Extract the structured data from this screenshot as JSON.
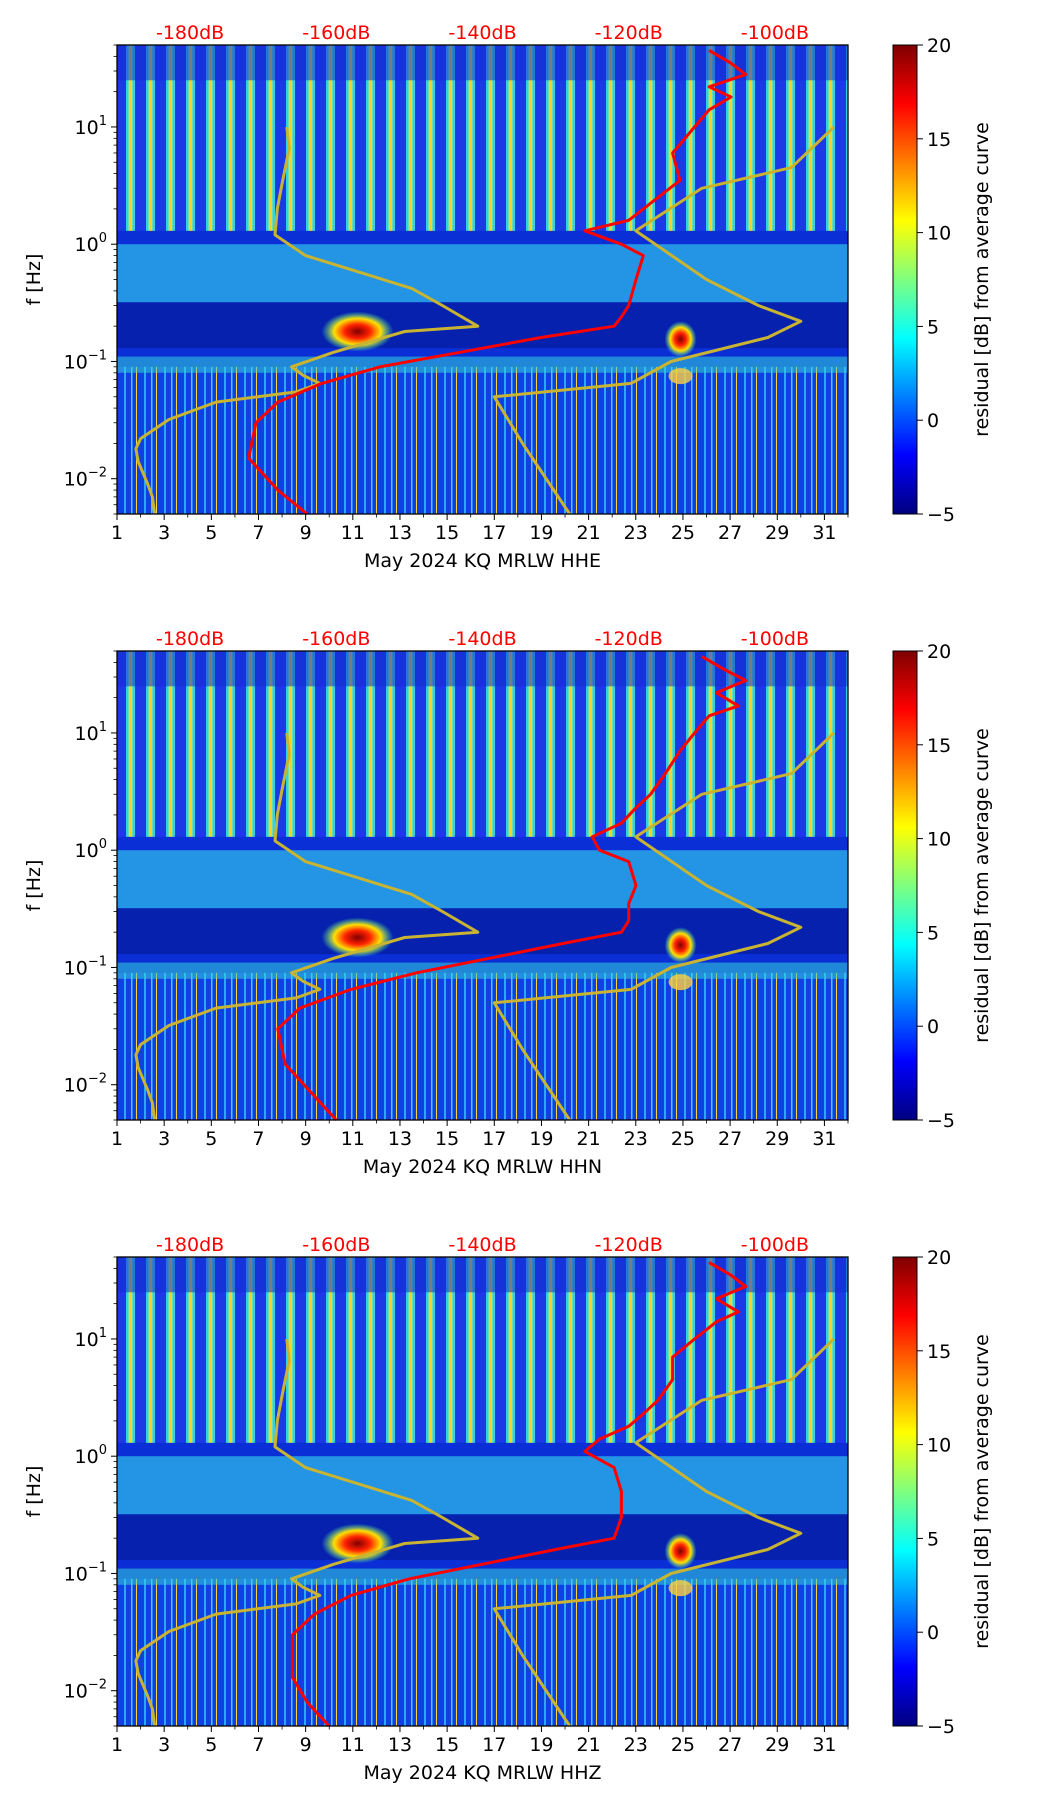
{
  "figure": {
    "colorbar_ticks": [
      "20",
      "15",
      "10",
      "5",
      "0",
      "−5"
    ],
    "colorbar_values": [
      20,
      15,
      10,
      5,
      0,
      -5
    ],
    "colorbar_label": "residual [dB] from average curve",
    "colorbar_range": [
      -5,
      20
    ],
    "colorbar_colors": [
      "#00007f",
      "#0000ff",
      "#007fff",
      "#00ffff",
      "#7fff7f",
      "#ffff00",
      "#ff7f00",
      "#ff0000",
      "#7f0000"
    ],
    "ylabel": "f [Hz]",
    "y_tick_labels": [
      {
        "base": "10",
        "exp": "1",
        "value": 10
      },
      {
        "base": "10",
        "exp": "0",
        "value": 1
      },
      {
        "base": "10",
        "exp": "−1",
        "value": 0.1
      },
      {
        "base": "10",
        "exp": "−2",
        "value": 0.01
      }
    ],
    "x_ticks": [
      "1",
      "3",
      "5",
      "7",
      "9",
      "11",
      "13",
      "15",
      "17",
      "19",
      "21",
      "23",
      "25",
      "27",
      "29",
      "31"
    ],
    "x_tick_values": [
      1,
      3,
      5,
      7,
      9,
      11,
      13,
      15,
      17,
      19,
      21,
      23,
      25,
      27,
      29,
      31
    ],
    "db_axis_labels": [
      "-180dB",
      "-160dB",
      "-140dB",
      "-120dB",
      "-100dB"
    ],
    "db_axis_values": [
      -180,
      -160,
      -140,
      -120,
      -100
    ],
    "colors": {
      "nlnm_nhnm_line": "#c8b432",
      "average_psd_line": "#ff0000",
      "db_labels": "#ff0000"
    }
  },
  "chart_data": [
    {
      "type": "heatmap",
      "xlabel": "May 2024 KQ MRLW  HHE",
      "ylabel": "f [Hz]",
      "xlim": [
        1,
        32
      ],
      "ylim": [
        0.005,
        50
      ],
      "yscale": "log",
      "secondary_x_axis": {
        "labels": [
          "-180dB",
          "-160dB",
          "-140dB",
          "-120dB",
          "-100dB"
        ],
        "values": [
          -180,
          -160,
          -140,
          -120,
          -100
        ],
        "position": "top"
      },
      "colorbar": {
        "label": "residual [dB] from average curve",
        "range": [
          -5,
          20
        ],
        "ticks": [
          -5,
          0,
          5,
          10,
          15,
          20
        ]
      },
      "lines": [
        {
          "color": "yellow",
          "points": [
            [
              2.6,
              0.005
            ],
            [
              2.5,
              0.007
            ],
            [
              2.3,
              0.009
            ],
            [
              1.9,
              0.014
            ],
            [
              1.8,
              0.018
            ],
            [
              2.0,
              0.022
            ],
            [
              3.2,
              0.032
            ],
            [
              5.2,
              0.045
            ],
            [
              8.6,
              0.055
            ],
            [
              9.6,
              0.065
            ],
            [
              8.9,
              0.076
            ],
            [
              8.4,
              0.09
            ],
            [
              10.2,
              0.12
            ],
            [
              13.2,
              0.18
            ],
            [
              16.3,
              0.2
            ],
            [
              14.8,
              0.3
            ],
            [
              13.5,
              0.42
            ],
            [
              9.0,
              0.8
            ],
            [
              7.7,
              1.2
            ],
            [
              7.8,
              2.0
            ],
            [
              8.0,
              3.3
            ],
            [
              8.3,
              6.5
            ],
            [
              8.2,
              10
            ]
          ]
        },
        {
          "color": "yellow",
          "points": [
            [
              20.2,
              0.005
            ],
            [
              18.2,
              0.02
            ],
            [
              17.0,
              0.05
            ],
            [
              22.8,
              0.065
            ],
            [
              24.5,
              0.1
            ],
            [
              28.6,
              0.16
            ],
            [
              30.0,
              0.22
            ],
            [
              28.2,
              0.3
            ],
            [
              26.0,
              0.5
            ],
            [
              23.0,
              1.3
            ],
            [
              25.8,
              3.0
            ],
            [
              29.6,
              4.5
            ],
            [
              31.4,
              10
            ]
          ]
        },
        {
          "color": "red",
          "db_points": [
            [
              -164,
              0.005
            ],
            [
              -168,
              0.008
            ],
            [
              -172,
              0.015
            ],
            [
              -171,
              0.03
            ],
            [
              -168,
              0.045
            ],
            [
              -162,
              0.065
            ],
            [
              -154,
              0.09
            ],
            [
              -143,
              0.12
            ],
            [
              -132,
              0.16
            ],
            [
              -122,
              0.2
            ],
            [
              -121,
              0.24
            ],
            [
              -120,
              0.3
            ],
            [
              -119,
              0.5
            ],
            [
              -118,
              0.8
            ],
            [
              -121,
              1.0
            ],
            [
              -126,
              1.3
            ],
            [
              -120,
              1.6
            ],
            [
              -118,
              2.0
            ],
            [
              -116,
              2.5
            ],
            [
              -113,
              3.5
            ],
            [
              -114,
              6
            ],
            [
              -111,
              10
            ],
            [
              -109,
              14
            ],
            [
              -106,
              18
            ],
            [
              -109,
              22
            ],
            [
              -104,
              28
            ],
            [
              -106,
              35
            ],
            [
              -109,
              45
            ]
          ]
        }
      ]
    },
    {
      "type": "heatmap",
      "xlabel": "May 2024 KQ MRLW  HHN",
      "ylabel": "f [Hz]",
      "xlim": [
        1,
        32
      ],
      "ylim": [
        0.005,
        50
      ],
      "yscale": "log",
      "secondary_x_axis": {
        "labels": [
          "-180dB",
          "-160dB",
          "-140dB",
          "-120dB",
          "-100dB"
        ],
        "values": [
          -180,
          -160,
          -140,
          -120,
          -100
        ],
        "position": "top"
      },
      "colorbar": {
        "label": "residual [dB] from average curve",
        "range": [
          -5,
          20
        ],
        "ticks": [
          -5,
          0,
          5,
          10,
          15,
          20
        ]
      },
      "lines": [
        {
          "color": "yellow",
          "points": [
            [
              2.6,
              0.005
            ],
            [
              2.5,
              0.007
            ],
            [
              2.3,
              0.009
            ],
            [
              1.9,
              0.014
            ],
            [
              1.8,
              0.018
            ],
            [
              2.0,
              0.022
            ],
            [
              3.2,
              0.032
            ],
            [
              5.2,
              0.045
            ],
            [
              8.6,
              0.055
            ],
            [
              9.6,
              0.065
            ],
            [
              8.9,
              0.076
            ],
            [
              8.4,
              0.09
            ],
            [
              10.2,
              0.12
            ],
            [
              13.2,
              0.18
            ],
            [
              16.3,
              0.2
            ],
            [
              14.8,
              0.3
            ],
            [
              13.5,
              0.42
            ],
            [
              9.0,
              0.8
            ],
            [
              7.7,
              1.2
            ],
            [
              7.8,
              2.0
            ],
            [
              8.0,
              3.3
            ],
            [
              8.3,
              6.5
            ],
            [
              8.2,
              10
            ]
          ]
        },
        {
          "color": "yellow",
          "points": [
            [
              20.2,
              0.005
            ],
            [
              18.2,
              0.02
            ],
            [
              17.0,
              0.05
            ],
            [
              22.8,
              0.065
            ],
            [
              24.5,
              0.1
            ],
            [
              28.6,
              0.16
            ],
            [
              30.0,
              0.22
            ],
            [
              28.2,
              0.3
            ],
            [
              26.0,
              0.5
            ],
            [
              23.0,
              1.3
            ],
            [
              25.8,
              3.0
            ],
            [
              29.6,
              4.5
            ],
            [
              31.4,
              10
            ]
          ]
        },
        {
          "color": "red",
          "db_points": [
            [
              -160,
              0.005
            ],
            [
              -163,
              0.008
            ],
            [
              -167,
              0.015
            ],
            [
              -168,
              0.03
            ],
            [
              -165,
              0.045
            ],
            [
              -158,
              0.065
            ],
            [
              -149,
              0.09
            ],
            [
              -139,
              0.12
            ],
            [
              -129,
              0.16
            ],
            [
              -121,
              0.2
            ],
            [
              -120,
              0.25
            ],
            [
              -120,
              0.35
            ],
            [
              -119,
              0.5
            ],
            [
              -120,
              0.8
            ],
            [
              -124,
              1.0
            ],
            [
              -125,
              1.3
            ],
            [
              -121,
              1.7
            ],
            [
              -119,
              2.3
            ],
            [
              -117,
              3.0
            ],
            [
              -115,
              4.5
            ],
            [
              -113,
              7
            ],
            [
              -111,
              10
            ],
            [
              -109,
              14
            ],
            [
              -105,
              17
            ],
            [
              -108,
              22
            ],
            [
              -104,
              28
            ],
            [
              -107,
              35
            ],
            [
              -110,
              45
            ]
          ]
        }
      ]
    },
    {
      "type": "heatmap",
      "xlabel": "May 2024 KQ MRLW  HHZ",
      "ylabel": "f [Hz]",
      "xlim": [
        1,
        32
      ],
      "ylim": [
        0.005,
        50
      ],
      "yscale": "log",
      "secondary_x_axis": {
        "labels": [
          "-180dB",
          "-160dB",
          "-140dB",
          "-120dB",
          "-100dB"
        ],
        "values": [
          -180,
          -160,
          -140,
          -120,
          -100
        ],
        "position": "top"
      },
      "colorbar": {
        "label": "residual [dB] from average curve",
        "range": [
          -5,
          20
        ],
        "ticks": [
          -5,
          0,
          5,
          10,
          15,
          20
        ]
      },
      "lines": [
        {
          "color": "yellow",
          "points": [
            [
              2.6,
              0.005
            ],
            [
              2.5,
              0.007
            ],
            [
              2.3,
              0.009
            ],
            [
              1.9,
              0.014
            ],
            [
              1.8,
              0.018
            ],
            [
              2.0,
              0.022
            ],
            [
              3.2,
              0.032
            ],
            [
              5.2,
              0.045
            ],
            [
              8.6,
              0.055
            ],
            [
              9.6,
              0.065
            ],
            [
              8.9,
              0.076
            ],
            [
              8.4,
              0.09
            ],
            [
              10.2,
              0.12
            ],
            [
              13.2,
              0.18
            ],
            [
              16.3,
              0.2
            ],
            [
              14.8,
              0.3
            ],
            [
              13.5,
              0.42
            ],
            [
              9.0,
              0.8
            ],
            [
              7.7,
              1.2
            ],
            [
              7.8,
              2.0
            ],
            [
              8.0,
              3.3
            ],
            [
              8.3,
              6.5
            ],
            [
              8.2,
              10
            ]
          ]
        },
        {
          "color": "yellow",
          "points": [
            [
              20.2,
              0.005
            ],
            [
              18.2,
              0.02
            ],
            [
              17.0,
              0.05
            ],
            [
              22.8,
              0.065
            ],
            [
              24.5,
              0.1
            ],
            [
              28.6,
              0.16
            ],
            [
              30.0,
              0.22
            ],
            [
              28.2,
              0.3
            ],
            [
              26.0,
              0.5
            ],
            [
              23.0,
              1.3
            ],
            [
              25.8,
              3.0
            ],
            [
              29.6,
              4.5
            ],
            [
              31.4,
              10
            ]
          ]
        },
        {
          "color": "red",
          "db_points": [
            [
              -161,
              0.005
            ],
            [
              -164,
              0.008
            ],
            [
              -166,
              0.013
            ],
            [
              -166,
              0.02
            ],
            [
              -166,
              0.03
            ],
            [
              -163,
              0.045
            ],
            [
              -158,
              0.065
            ],
            [
              -150,
              0.09
            ],
            [
              -140,
              0.12
            ],
            [
              -130,
              0.16
            ],
            [
              -122,
              0.2
            ],
            [
              -121,
              0.3
            ],
            [
              -121,
              0.5
            ],
            [
              -122,
              0.8
            ],
            [
              -126,
              1.1
            ],
            [
              -124,
              1.4
            ],
            [
              -120,
              1.8
            ],
            [
              -118,
              2.3
            ],
            [
              -116,
              3.0
            ],
            [
              -114,
              4.5
            ],
            [
              -114,
              7
            ],
            [
              -111,
              10
            ],
            [
              -108,
              14
            ],
            [
              -105,
              17
            ],
            [
              -108,
              22
            ],
            [
              -104,
              28
            ],
            [
              -106,
              35
            ],
            [
              -109,
              45
            ]
          ]
        }
      ]
    }
  ]
}
